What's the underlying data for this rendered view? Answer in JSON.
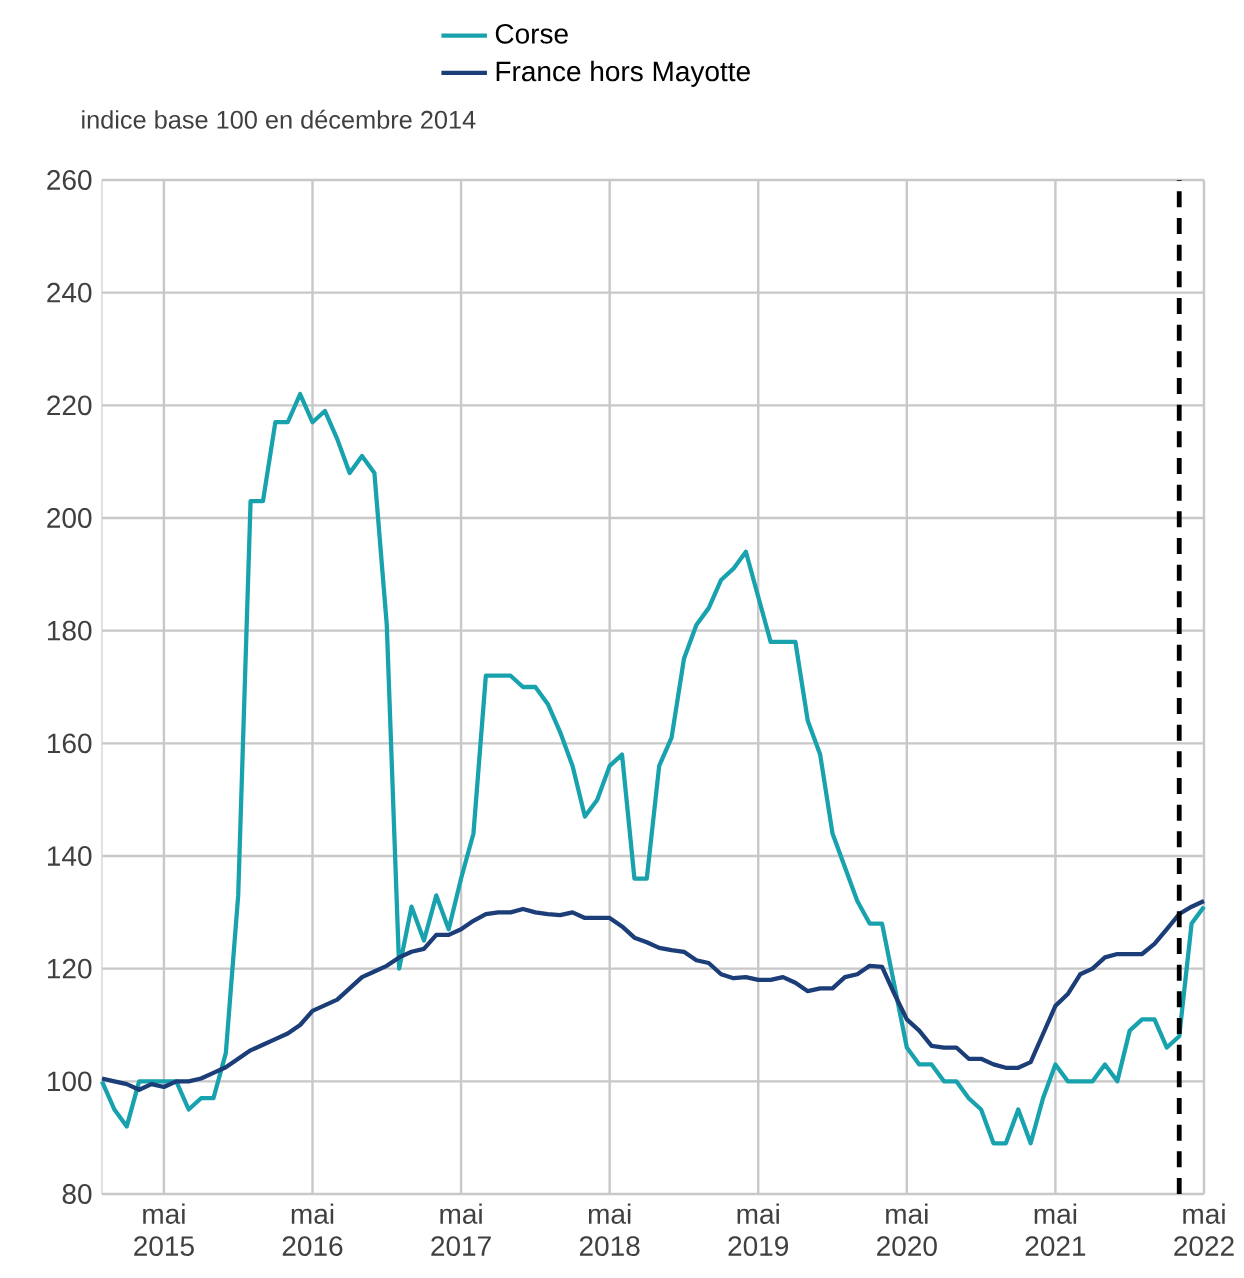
{
  "chart_data": {
    "type": "line",
    "ylabel": "indice base 100 en décembre 2014",
    "legend": "top",
    "grid": true,
    "marker": "none",
    "line_style": "solid",
    "x": [
      "2014-12",
      "2015-01",
      "2015-02",
      "2015-03",
      "2015-04",
      "2015-05",
      "2015-06",
      "2015-07",
      "2015-08",
      "2015-09",
      "2015-10",
      "2015-11",
      "2015-12",
      "2016-01",
      "2016-02",
      "2016-03",
      "2016-04",
      "2016-05",
      "2016-06",
      "2016-07",
      "2016-08",
      "2016-09",
      "2016-10",
      "2016-11",
      "2016-12",
      "2017-01",
      "2017-02",
      "2017-03",
      "2017-04",
      "2017-05",
      "2017-06",
      "2017-07",
      "2017-08",
      "2017-09",
      "2017-10",
      "2017-11",
      "2017-12",
      "2018-01",
      "2018-02",
      "2018-03",
      "2018-04",
      "2018-05",
      "2018-06",
      "2018-07",
      "2018-08",
      "2018-09",
      "2018-10",
      "2018-11",
      "2018-12",
      "2019-01",
      "2019-02",
      "2019-03",
      "2019-04",
      "2019-05",
      "2019-06",
      "2019-07",
      "2019-08",
      "2019-09",
      "2019-10",
      "2019-11",
      "2019-12",
      "2020-01",
      "2020-02",
      "2020-03",
      "2020-04",
      "2020-05",
      "2020-06",
      "2020-07",
      "2020-08",
      "2020-09",
      "2020-10",
      "2020-11",
      "2020-12",
      "2021-01",
      "2021-02",
      "2021-03",
      "2021-04",
      "2021-05",
      "2021-06",
      "2021-07",
      "2021-08",
      "2021-09",
      "2021-10",
      "2021-11",
      "2021-12",
      "2022-01",
      "2022-02",
      "2022-03",
      "2022-04",
      "2022-05"
    ],
    "series": [
      {
        "name": "Corse",
        "color": "#17a2ae",
        "values": [
          100,
          95,
          92,
          100,
          100,
          100,
          100,
          95,
          97,
          97,
          105,
          133,
          203,
          203,
          217,
          217,
          222,
          217,
          219,
          214,
          208,
          211,
          208,
          181,
          120,
          131,
          125,
          133,
          127,
          136,
          144,
          172,
          172,
          172,
          170,
          170,
          167,
          162,
          156,
          147,
          150,
          156,
          158,
          136,
          136,
          156,
          161,
          175,
          181,
          184,
          189,
          191,
          194,
          186,
          178,
          178,
          178,
          164,
          158,
          144,
          138,
          132,
          128,
          128,
          117,
          106,
          103,
          103,
          100,
          100,
          97,
          95,
          89,
          89,
          95,
          89,
          97,
          103,
          100,
          100,
          100,
          103,
          100,
          109,
          111,
          111,
          106,
          108,
          128,
          131
        ]
      },
      {
        "name": "France hors Mayotte",
        "color": "#1b3d78",
        "values": [
          100.5,
          100,
          99.5,
          98.5,
          99.5,
          99,
          100,
          100,
          100.5,
          101.5,
          102.5,
          104,
          105.5,
          106.5,
          107.5,
          108.5,
          110,
          112.5,
          113.5,
          114.5,
          116.5,
          118.5,
          119.5,
          120.5,
          122,
          123,
          123.5,
          126,
          126,
          127,
          128.5,
          129.7,
          130,
          130,
          130.6,
          130,
          129.7,
          129.5,
          130,
          129,
          129,
          129,
          127.5,
          125.5,
          124.7,
          123.7,
          123.3,
          123,
          121.5,
          121,
          119,
          118.3,
          118.5,
          118,
          118,
          118.5,
          117.5,
          116,
          116.5,
          116.5,
          118.5,
          119,
          120.5,
          120.3,
          115.5,
          111,
          109,
          106.3,
          106,
          106,
          104,
          104,
          103,
          102.4,
          102.4,
          103.4,
          108.4,
          113.4,
          115.5,
          119,
          120,
          122,
          122.6,
          122.6,
          122.6,
          124.4,
          127,
          129.7,
          131,
          132
        ]
      }
    ],
    "xlim": [
      "2014-12",
      "2022-05"
    ],
    "xticks": [
      {
        "value": "2015-05",
        "label": "mai 2015"
      },
      {
        "value": "2016-05",
        "label": "mai 2016"
      },
      {
        "value": "2017-05",
        "label": "mai 2017"
      },
      {
        "value": "2018-05",
        "label": "mai 2018"
      },
      {
        "value": "2019-05",
        "label": "mai 2019"
      },
      {
        "value": "2020-05",
        "label": "mai 2020"
      },
      {
        "value": "2021-05",
        "label": "mai 2021"
      },
      {
        "value": "2022-05",
        "label": "mai 2022"
      }
    ],
    "ylim": [
      80,
      260
    ],
    "yticks": [
      80,
      100,
      120,
      140,
      160,
      180,
      200,
      220,
      240,
      260
    ],
    "ref_lines": [
      {
        "axis": "x",
        "value": "2022-03",
        "color": "#000000",
        "line_style": "dashed"
      }
    ]
  }
}
